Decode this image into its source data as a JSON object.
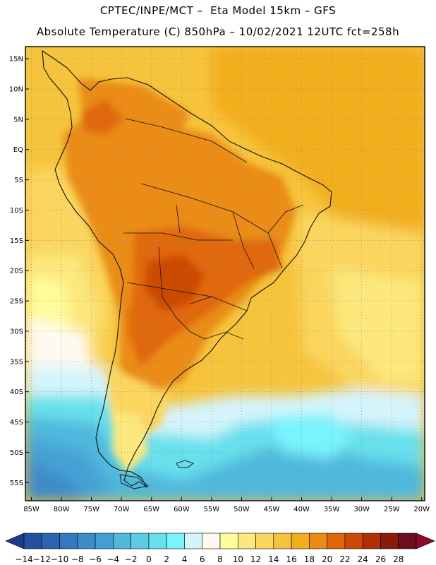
{
  "header": {
    "line1": "CPTEC/INPE/MCT –  Eta Model 15km – GFS",
    "line2": "Absolute Temperature (C) 850hPa – 10/02/2021 12UTC fct=258h"
  },
  "map": {
    "lat_labels": [
      "15N",
      "10N",
      "5N",
      "EQ",
      "5S",
      "10S",
      "15S",
      "20S",
      "25S",
      "30S",
      "35S",
      "40S",
      "45S",
      "50S",
      "55S"
    ],
    "lon_labels": [
      "85W",
      "80W",
      "75W",
      "70W",
      "65W",
      "60W",
      "55W",
      "50W",
      "45W",
      "40W",
      "35W",
      "30W",
      "25W",
      "20W"
    ],
    "grid": "dotted",
    "extent": {
      "lon": [
        -86,
        -19.5
      ],
      "lat": [
        -58,
        17
      ]
    }
  },
  "colorbar": {
    "labels": [
      "-14",
      "-12",
      "-10",
      "-8",
      "-6",
      "-4",
      "-2",
      "0",
      "2",
      "4",
      "6",
      "8",
      "10",
      "12",
      "14",
      "16",
      "18",
      "20",
      "22",
      "24",
      "26",
      "28"
    ],
    "colors": [
      "#1e3c8c",
      "#2450a0",
      "#2c64b4",
      "#3478c0",
      "#3c8cc8",
      "#44a0d4",
      "#50b8dc",
      "#5ccce4",
      "#68e0ec",
      "#78f4fc",
      "#d4f4fc",
      "#fffaf0",
      "#fffc9c",
      "#fce87c",
      "#fad65e",
      "#f6c43c",
      "#f2ae1c",
      "#ea8c12",
      "#e0680a",
      "#cc4a06",
      "#b03004",
      "#8c1a0a",
      "#6c0e1c",
      "#8c0a2c"
    ]
  }
}
